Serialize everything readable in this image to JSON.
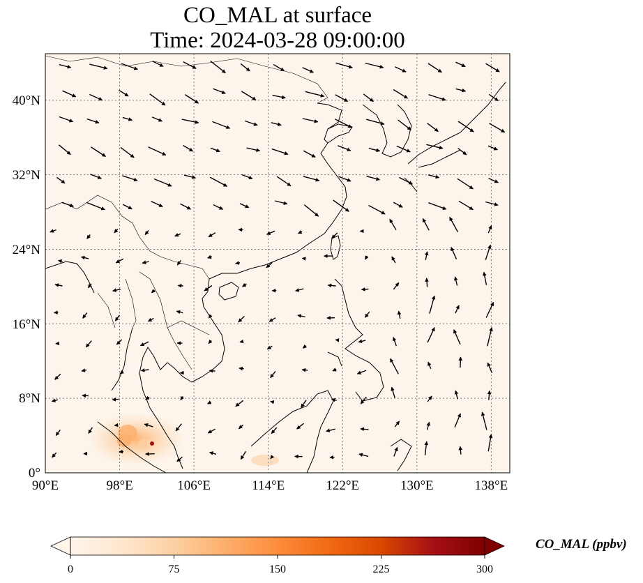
{
  "title_line1": "CO_MAL at surface",
  "title_line2": "Time: 2024-03-28 09:00:00",
  "map": {
    "projection": "PlateCarree",
    "lon_range": [
      90,
      140
    ],
    "lat_range": [
      0,
      45
    ],
    "lon_ticks": [
      90,
      98,
      106,
      114,
      122,
      130,
      138
    ],
    "lon_tick_labels": [
      "90°E",
      "98°E",
      "106°E",
      "114°E",
      "122°E",
      "130°E",
      "138°E"
    ],
    "lat_ticks": [
      0,
      8,
      16,
      24,
      32,
      40
    ],
    "lat_tick_labels": [
      "0°",
      "8°N",
      "16°N",
      "24°N",
      "32°N",
      "40°N"
    ],
    "gridlines": true,
    "background_color": "#fdf5eb",
    "coastline_color": "#000000",
    "wind_vectors": "wind-arrow-icon"
  },
  "colorbar": {
    "label": "CO_MAL (ppbv)",
    "min": 0,
    "max": 300,
    "ticks": [
      0,
      75,
      150,
      225,
      300
    ],
    "tick_labels": [
      "0",
      "75",
      "150",
      "225",
      "300"
    ],
    "extend": "both",
    "colormap_stops": [
      "#fff5eb",
      "#fee6ce",
      "#fdd0a2",
      "#fdae6b",
      "#fd8d3c",
      "#f16913",
      "#d94801",
      "#a50f15",
      "#7f0000"
    ]
  }
}
